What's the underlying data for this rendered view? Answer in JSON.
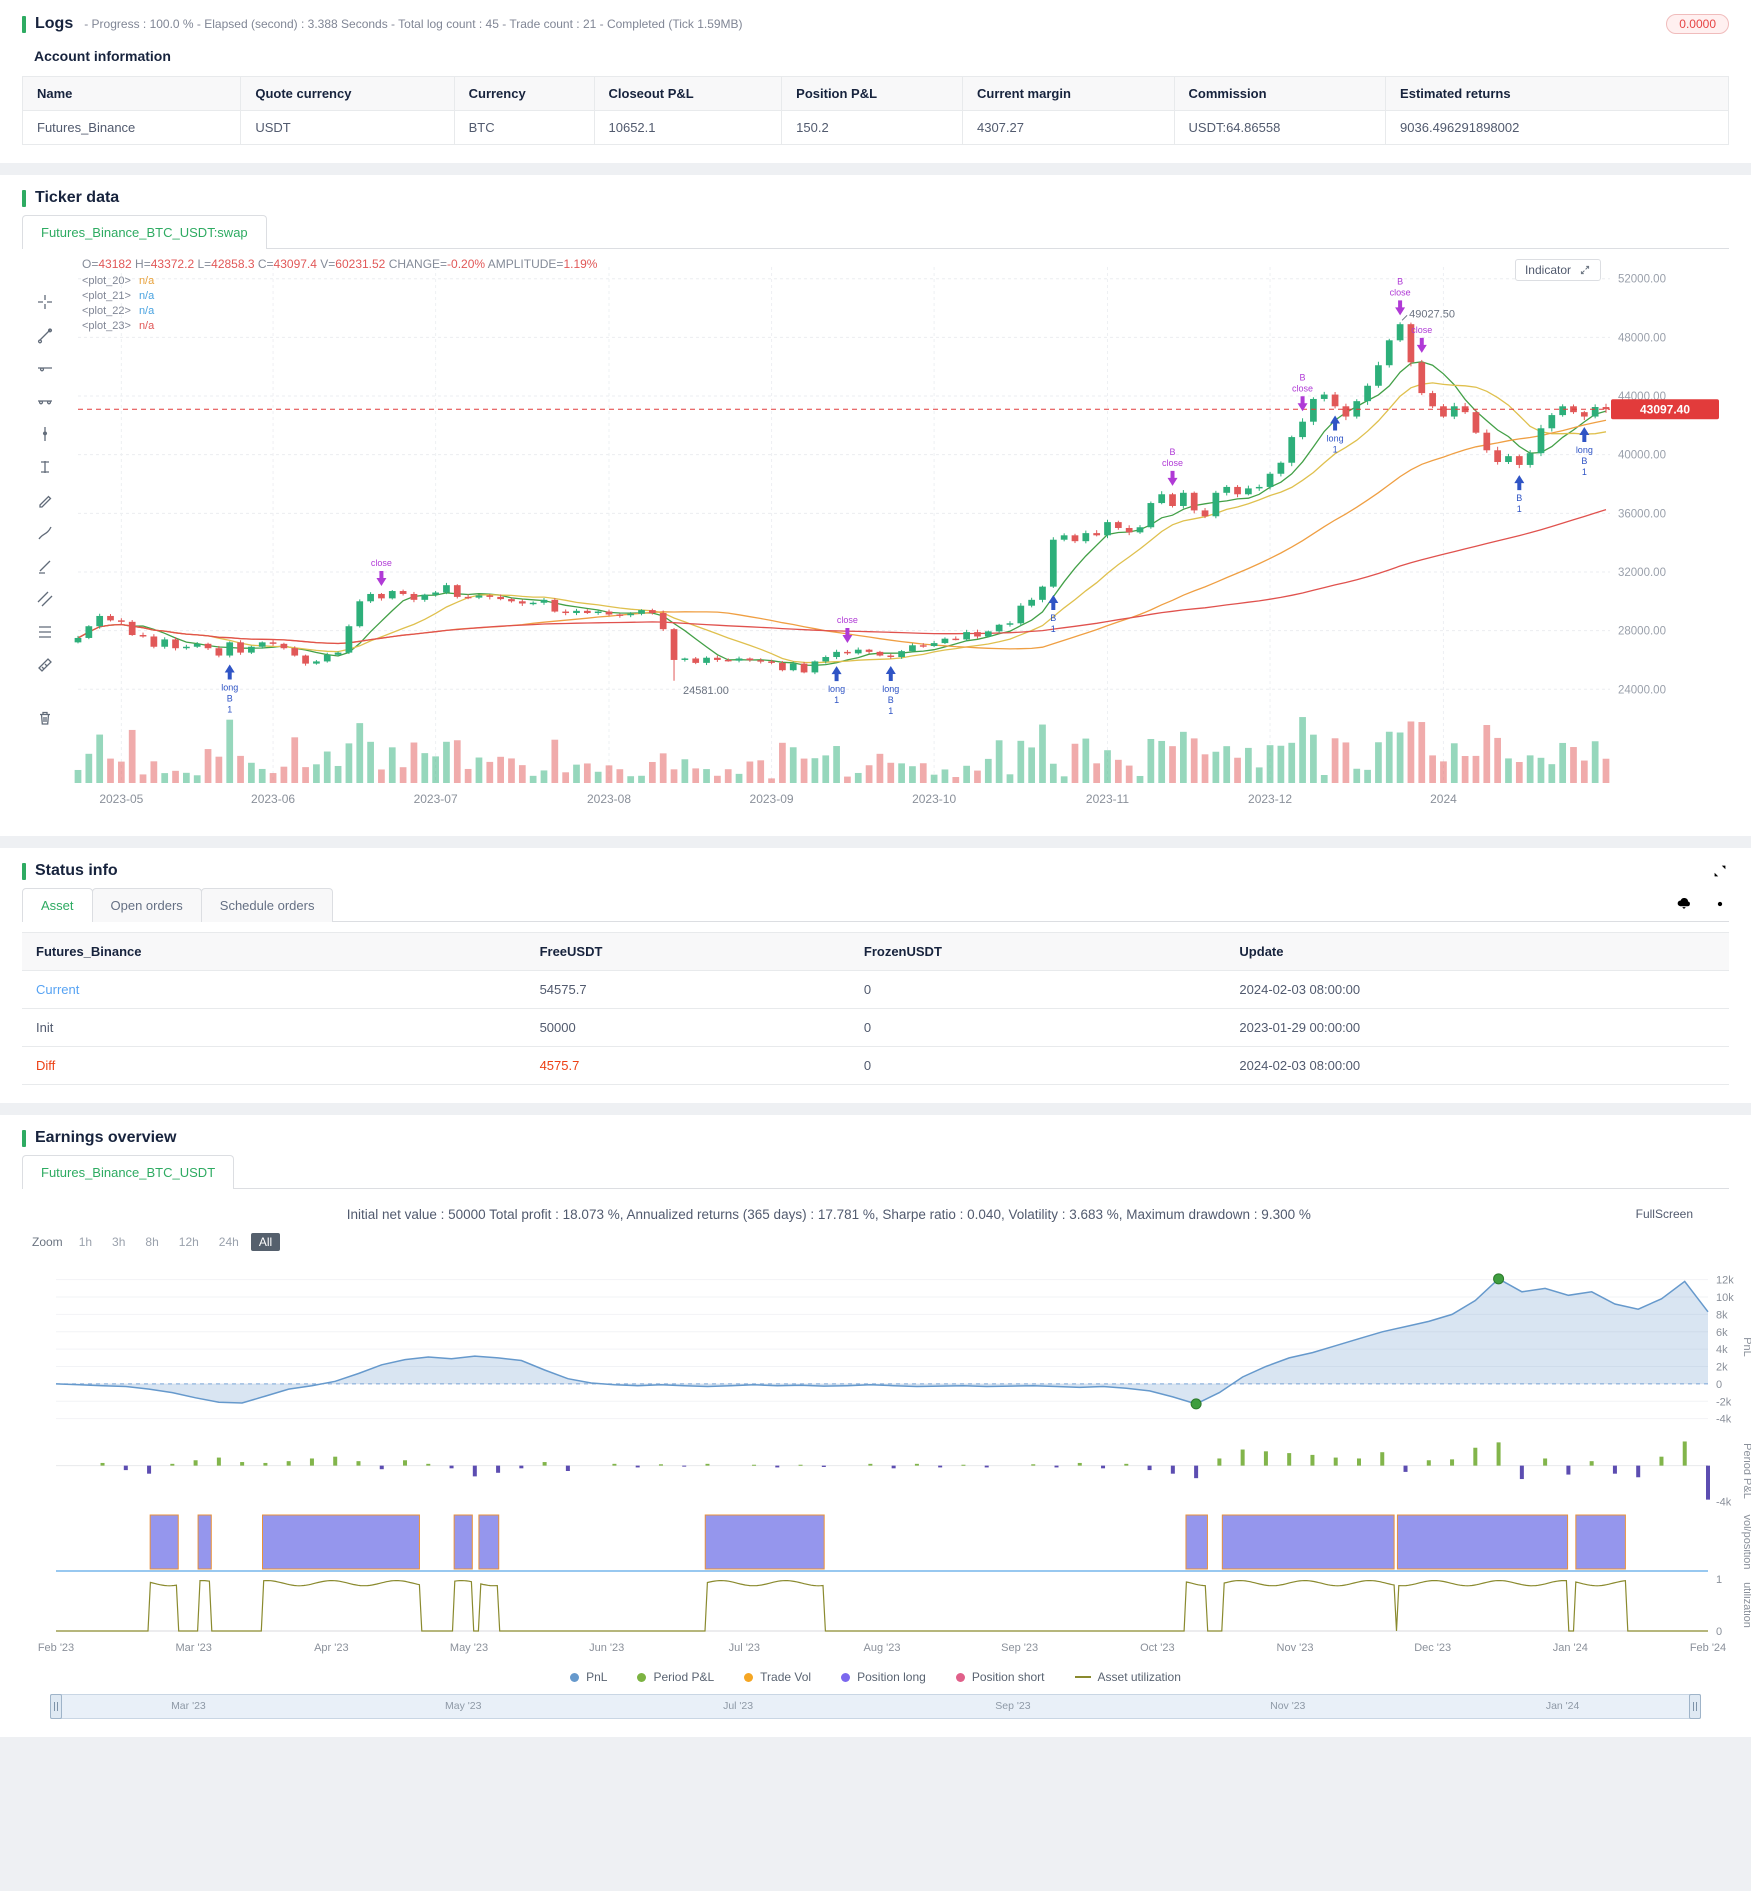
{
  "colors": {
    "accent_green": "#2eab62",
    "up": "#2daf7a",
    "down": "#e15858",
    "label_gray": "#848b98",
    "ma": [
      "#43a047",
      "#dfc04e",
      "#ef9f43",
      "#e0524e"
    ],
    "long_marker": "#2f54c5",
    "close_marker": "#b03ad6",
    "price_line": "#e23b3b",
    "pnl_line": "#6699cc",
    "pnl_fill": "rgba(120,160,210,0.28)",
    "dot_green": "#3f9e3f",
    "period_pos": "#82b54b",
    "period_neg": "#5c4db1",
    "position_fill": "rgba(123,124,232,0.8)",
    "position_edge": "#e8903a",
    "utilization": "#8a8a2e"
  },
  "logs": {
    "title": "Logs",
    "meta": "- Progress : 100.0 % - Elapsed (second) : 3.388  Seconds - Total log count : 45 - Trade count : 21 - Completed (Tick 1.59MB)",
    "badge": "0.0000"
  },
  "account": {
    "title": "Account information",
    "headers": [
      "Name",
      "Quote currency",
      "Currency",
      "Closeout P&L",
      "Position P&L",
      "Current margin",
      "Commission",
      "Estimated returns"
    ],
    "row": [
      "Futures_Binance",
      "USDT",
      "BTC",
      "10652.1",
      "150.2",
      "4307.27",
      "USDT:64.86558",
      "9036.496291898002"
    ]
  },
  "ticker": {
    "title": "Ticker data",
    "tab": "Futures_Binance_BTC_USDT:swap",
    "indicator": "Indicator",
    "ohlc_parts": [
      {
        "t": "O=",
        "k": "l"
      },
      {
        "t": "43182",
        "k": "v"
      },
      {
        "t": " H=",
        "k": "l"
      },
      {
        "t": "43372.2",
        "k": "v"
      },
      {
        "t": " L=",
        "k": "l"
      },
      {
        "t": "42858.3",
        "k": "v"
      },
      {
        "t": " C=",
        "k": "l"
      },
      {
        "t": "43097.4",
        "k": "v"
      },
      {
        "t": " V=",
        "k": "l"
      },
      {
        "t": "60231.52",
        "k": "v"
      },
      {
        "t": " CHANGE=",
        "k": "l"
      },
      {
        "t": "-0.20%",
        "k": "v"
      },
      {
        "t": " AMPLITUDE=",
        "k": "l"
      },
      {
        "t": "1.19%",
        "k": "v"
      }
    ],
    "plots": [
      {
        "name": "<plot_20>",
        "value": "n/a",
        "color": "#e8a23c"
      },
      {
        "name": "<plot_21>",
        "value": "n/a",
        "color": "#4aa3e0"
      },
      {
        "name": "<plot_22>",
        "value": "n/a",
        "color": "#4aa3e0"
      },
      {
        "name": "<plot_23>",
        "value": "n/a",
        "color": "#e05656"
      }
    ],
    "toolbar": [
      "crosshair",
      "trend-line",
      "horizontal-line",
      "info-line",
      "vertical-line",
      "price-range",
      "pencil",
      "brush",
      "highlighter",
      "parallel-channel",
      "fib-retracement",
      "measure",
      "trash"
    ]
  },
  "status": {
    "title": "Status info",
    "tabs": [
      "Asset",
      "Open orders",
      "Schedule orders"
    ],
    "headers": [
      "Futures_Binance",
      "FreeUSDT",
      "FrozenUSDT",
      "Update"
    ],
    "rows": [
      {
        "label": "Current",
        "label_color": "#57a3f3",
        "cells": [
          "54575.7",
          "0",
          "2024-02-03 08:00:00"
        ],
        "cell_colors": [
          null,
          null,
          null
        ]
      },
      {
        "label": "Init",
        "label_color": "#515a6e",
        "cells": [
          "50000",
          "0",
          "2023-01-29 00:00:00"
        ],
        "cell_colors": [
          null,
          null,
          null
        ]
      },
      {
        "label": "Diff",
        "label_color": "#ed4014",
        "cells": [
          "4575.7",
          "0",
          "2024-02-03 08:00:00"
        ],
        "cell_colors": [
          "#ed4014",
          null,
          null
        ]
      }
    ]
  },
  "earnings": {
    "title": "Earnings overview",
    "tab": "Futures_Binance_BTC_USDT",
    "stats": "Initial net value : 50000 Total profit : 18.073 %, Annualized returns (365 days) : 17.781 %, Sharpe ratio : 0.040, Volatility : 3.683 %, Maximum drawdown : 9.300 %",
    "fullscreen": "FullScreen",
    "zoom_label": "Zoom",
    "zoom_options": [
      "1h",
      "3h",
      "8h",
      "12h",
      "24h",
      "All"
    ],
    "zoom_active": "All",
    "legend": [
      {
        "label": "PnL",
        "color": "#6699cc",
        "shape": "dot"
      },
      {
        "label": "Period P&L",
        "color": "#7cb342",
        "shape": "dot"
      },
      {
        "label": "Trade Vol",
        "color": "#f5a623",
        "shape": "dot"
      },
      {
        "label": "Position long",
        "color": "#7b68ee",
        "shape": "dot"
      },
      {
        "label": "Position short",
        "color": "#e0608a",
        "shape": "dot"
      },
      {
        "label": "Asset utilization",
        "color": "#8a8a2e",
        "shape": "line"
      }
    ],
    "nav_labels": [
      "Mar '23",
      "May '23",
      "Jul '23",
      "Sep '23",
      "Nov '23",
      "Jan '24"
    ]
  },
  "chart_data": [
    {
      "type": "candlestick",
      "title": "Futures_Binance_BTC_USDT:swap",
      "ylim": [
        23200,
        52800
      ],
      "yticks": [
        24000,
        28000,
        32000,
        36000,
        40000,
        44000,
        48000,
        52000
      ],
      "xticks": [
        {
          "i": 4,
          "label": "2023-05"
        },
        {
          "i": 18,
          "label": "2023-06"
        },
        {
          "i": 33,
          "label": "2023-07"
        },
        {
          "i": 49,
          "label": "2023-08"
        },
        {
          "i": 64,
          "label": "2023-09"
        },
        {
          "i": 79,
          "label": "2023-10"
        },
        {
          "i": 95,
          "label": "2023-11"
        },
        {
          "i": 110,
          "label": "2023-12"
        },
        {
          "i": 126,
          "label": "2024"
        }
      ],
      "first_open": 27200,
      "closes": [
        27500,
        28300,
        29000,
        28700,
        28600,
        27700,
        27600,
        26900,
        27400,
        26800,
        26900,
        27100,
        26800,
        26300,
        27200,
        26500,
        26900,
        27200,
        27100,
        26800,
        26300,
        25750,
        25900,
        26350,
        26500,
        28300,
        30000,
        30500,
        30200,
        30700,
        30500,
        30100,
        30450,
        30600,
        31100,
        30300,
        30250,
        30400,
        30300,
        30150,
        30000,
        29850,
        29900,
        30100,
        29300,
        29200,
        29350,
        29200,
        29300,
        29100,
        29050,
        29150,
        29400,
        29200,
        28100,
        26000,
        26100,
        25800,
        26150,
        26000,
        25950,
        26100,
        25980,
        25900,
        25800,
        25300,
        25750,
        25150,
        25900,
        26200,
        26550,
        26450,
        26700,
        26550,
        26300,
        26200,
        26600,
        27000,
        26950,
        27150,
        27450,
        27400,
        27900,
        27600,
        27950,
        28400,
        28500,
        29700,
        30100,
        31000,
        34200,
        34500,
        34100,
        34650,
        34500,
        35400,
        35000,
        34700,
        35050,
        36700,
        37300,
        36500,
        37400,
        36200,
        35800,
        37400,
        37800,
        37300,
        37700,
        37800,
        38700,
        39450,
        41200,
        42250,
        43800,
        44100,
        43300,
        42600,
        43650,
        44700,
        46100,
        47800,
        48900,
        46300,
        44200,
        43300,
        42600,
        43300,
        42900,
        41500,
        40300,
        39500,
        39900,
        39300,
        40100,
        41800,
        42700,
        43300,
        42900,
        42600,
        43250,
        43097
      ],
      "low_override": {
        "i": 55,
        "value": 24581
      },
      "high_override": {
        "i": 122,
        "value": 49027.5
      },
      "low_label": "24581.00",
      "high_label": "49027.50",
      "price_line": {
        "value": 43097.4,
        "label": "43097.40"
      },
      "ma_windows": [
        6,
        12,
        35,
        75
      ],
      "markers": [
        {
          "i": 14,
          "side": "long",
          "texts": [
            "long",
            "B",
            "1"
          ]
        },
        {
          "i": 28,
          "side": "close",
          "texts": [
            "close"
          ]
        },
        {
          "i": 70,
          "side": "long",
          "texts": [
            "long",
            "1"
          ]
        },
        {
          "i": 71,
          "side": "close",
          "texts": [
            "close"
          ]
        },
        {
          "i": 75,
          "side": "long",
          "texts": [
            "long",
            "B",
            "1"
          ]
        },
        {
          "i": 90,
          "side": "long",
          "texts": [
            "B",
            "1"
          ]
        },
        {
          "i": 101,
          "side": "close",
          "texts": [
            "B",
            "close"
          ]
        },
        {
          "i": 113,
          "side": "close",
          "texts": [
            "B",
            "close"
          ]
        },
        {
          "i": 116,
          "side": "long",
          "texts": [
            "long",
            "1"
          ]
        },
        {
          "i": 122,
          "side": "close",
          "texts": [
            "B",
            "close"
          ]
        },
        {
          "i": 124,
          "side": "close",
          "texts": [
            "close"
          ]
        },
        {
          "i": 133,
          "side": "long",
          "texts": [
            "B",
            "1"
          ]
        },
        {
          "i": 139,
          "side": "long",
          "texts": [
            "long",
            "B",
            "1"
          ]
        }
      ]
    },
    {
      "type": "multi-panel-timeseries",
      "x_months": [
        "Feb '23",
        "Mar '23",
        "Apr '23",
        "May '23",
        "Jun '23",
        "Jul '23",
        "Aug '23",
        "Sep '23",
        "Oct '23",
        "Nov '23",
        "Dec '23",
        "Jan '24",
        "Feb '24"
      ],
      "panels": [
        {
          "name": "PnL",
          "type": "area",
          "yticks": [
            "12k",
            "10k",
            "8k",
            "6k",
            "4k",
            "2k",
            "0",
            "-2k",
            "-4k"
          ],
          "ytick_values": [
            12,
            10,
            8,
            6,
            4,
            2,
            0,
            -2,
            -4
          ],
          "values_k": [
            0,
            -0.1,
            -0.2,
            -0.3,
            -0.6,
            -1.0,
            -1.6,
            -2.1,
            -2.2,
            -1.4,
            -0.6,
            -0.2,
            0.3,
            1.2,
            2.2,
            2.8,
            3.1,
            2.9,
            3.2,
            3.0,
            2.7,
            1.6,
            0.6,
            0.1,
            -0.1,
            -0.2,
            -0.1,
            -0.2,
            -0.3,
            -0.2,
            -0.1,
            -0.2,
            -0.15,
            -0.25,
            -0.2,
            -0.1,
            -0.2,
            -0.3,
            -0.25,
            -0.2,
            -0.3,
            -0.25,
            -0.2,
            -0.3,
            -0.4,
            -0.3,
            -0.5,
            -0.8,
            -1.5,
            -2.3,
            -1.0,
            0.8,
            2.0,
            3.0,
            3.6,
            4.4,
            5.2,
            6.0,
            6.6,
            7.2,
            8.0,
            9.6,
            12.1,
            10.6,
            11.0,
            10.2,
            10.6,
            9.2,
            8.6,
            9.8,
            11.8,
            8.3
          ],
          "min_marker": 49,
          "max_marker": 62
        },
        {
          "name": "Period P&L",
          "type": "bar",
          "ytick": "-4k",
          "values_k": [
            0,
            0,
            0.3,
            -0.5,
            -0.9,
            0.2,
            0.6,
            0.9,
            0.4,
            0.3,
            0.5,
            0.8,
            1.0,
            0.5,
            -0.4,
            0.6,
            0.2,
            -0.3,
            -1.2,
            -0.8,
            -0.3,
            0.4,
            -0.6,
            0,
            0.2,
            -0.2,
            0.15,
            -0.1,
            0.2,
            0,
            0.1,
            -0.2,
            0.1,
            -0.15,
            0,
            0.2,
            -0.3,
            0.2,
            -0.2,
            0.1,
            -0.2,
            0,
            0.15,
            -0.2,
            0.3,
            -0.3,
            0.2,
            -0.5,
            -0.9,
            -1.4,
            0.8,
            1.8,
            1.6,
            1.4,
            1.2,
            0.9,
            0.8,
            1.5,
            -0.7,
            0.6,
            0.7,
            2.0,
            2.6,
            -1.5,
            0.8,
            -1.0,
            0.5,
            -0.9,
            -1.3,
            1.0,
            2.7,
            -3.8
          ]
        },
        {
          "name": "vol/position",
          "type": "blocks",
          "blocks": [
            [
              0.057,
              0.074
            ],
            [
              0.086,
              0.094
            ],
            [
              0.125,
              0.22
            ],
            [
              0.241,
              0.252
            ],
            [
              0.256,
              0.268
            ],
            [
              0.393,
              0.465
            ],
            [
              0.684,
              0.697
            ],
            [
              0.706,
              0.81
            ],
            [
              0.812,
              0.915
            ],
            [
              0.92,
              0.95
            ]
          ]
        },
        {
          "name": "utilization",
          "type": "step",
          "level": 0.92,
          "yticks": [
            "1",
            "0"
          ]
        }
      ]
    }
  ]
}
